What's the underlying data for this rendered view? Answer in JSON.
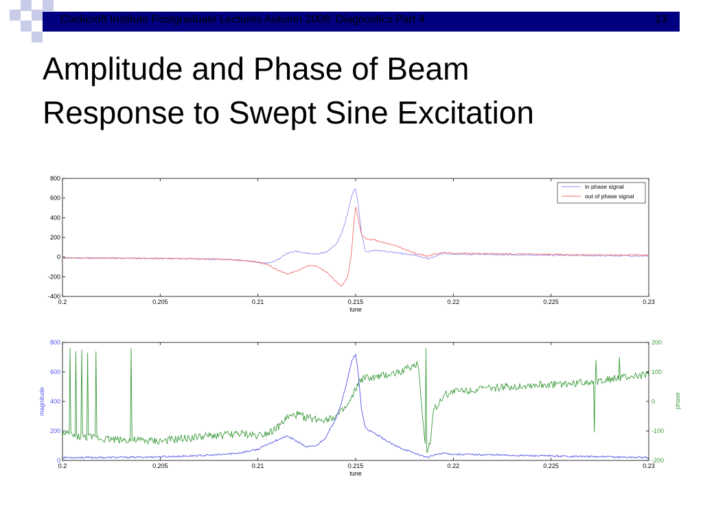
{
  "header": {
    "title": "Cockcroft Institute Postgraduate Lectures Autumn 2008: Diagnostics Part 4",
    "slide_number": "13"
  },
  "slide": {
    "title_line1": "Amplitude and Phase of Beam",
    "title_line2": "Response to Swept Sine Excitation"
  },
  "colors": {
    "header_bar": "#000080",
    "logo_square": "#c9cce8",
    "in_phase": "#8f8ff2",
    "out_of_phase": "#f26e6e",
    "magnitude": "#5050e8",
    "phase": "#3a9a3a"
  },
  "chart_data": [
    {
      "type": "line",
      "xlabel": "tune",
      "ylabel": "",
      "xlim": [
        0.2,
        0.23
      ],
      "ylim": [
        -400,
        800
      ],
      "x_ticks": [
        "0.2",
        "0.205",
        "0.21",
        "0.215",
        "0.22",
        "0.225",
        "0.23"
      ],
      "y_ticks": [
        "800",
        "600",
        "400",
        "200",
        "0",
        "-200",
        "-400"
      ],
      "grid": false,
      "legend": "top-right",
      "series": [
        {
          "name": "in phase signal",
          "color": "#8f8ff2",
          "x": [
            0.2,
            0.202,
            0.204,
            0.206,
            0.208,
            0.209,
            0.21,
            0.2105,
            0.211,
            0.2115,
            0.212,
            0.2125,
            0.213,
            0.2135,
            0.214,
            0.2143,
            0.2146,
            0.2148,
            0.2149,
            0.215,
            0.2151,
            0.2153,
            0.2155,
            0.216,
            0.217,
            0.218,
            0.2187,
            0.219,
            0.2195,
            0.22,
            0.222,
            0.224,
            0.226,
            0.228,
            0.23
          ],
          "y": [
            -10,
            -10,
            -12,
            -15,
            -22,
            -30,
            -50,
            -65,
            -30,
            40,
            60,
            40,
            30,
            50,
            130,
            250,
            450,
            620,
            680,
            690,
            580,
            250,
            50,
            70,
            45,
            20,
            -15,
            0,
            40,
            30,
            25,
            20,
            18,
            15,
            10
          ]
        },
        {
          "name": "out of phase signal",
          "color": "#f26e6e",
          "x": [
            0.2,
            0.202,
            0.204,
            0.206,
            0.208,
            0.209,
            0.21,
            0.2105,
            0.211,
            0.2115,
            0.212,
            0.2125,
            0.213,
            0.2135,
            0.214,
            0.2143,
            0.2146,
            0.2148,
            0.2149,
            0.215,
            0.2151,
            0.2153,
            0.2155,
            0.216,
            0.217,
            0.218,
            0.2187,
            0.219,
            0.2195,
            0.22,
            0.222,
            0.224,
            0.226,
            0.228,
            0.23
          ],
          "y": [
            -10,
            -10,
            -12,
            -15,
            -20,
            -30,
            -50,
            -80,
            -130,
            -170,
            -140,
            -90,
            -90,
            -150,
            -250,
            -300,
            -200,
            60,
            330,
            510,
            420,
            230,
            190,
            170,
            120,
            40,
            10,
            30,
            45,
            40,
            35,
            30,
            25,
            22,
            20
          ]
        }
      ]
    },
    {
      "type": "line",
      "xlabel": "tune",
      "ylabel": "magnitude",
      "ylabel_right": "phase",
      "xlim": [
        0.2,
        0.23
      ],
      "ylim": [
        0,
        800
      ],
      "ylim_right": [
        -200,
        200
      ],
      "x_ticks": [
        "0.2",
        "0.205",
        "0.21",
        "0.215",
        "0.22",
        "0.225",
        "0.23"
      ],
      "y_ticks": [
        "800",
        "600",
        "400",
        "200",
        "0"
      ],
      "y_ticks_right": [
        "200",
        "100",
        "0",
        "-100",
        "-200"
      ],
      "grid": false,
      "series": [
        {
          "color": "#5050e8",
          "axis": "left",
          "x": [
            0.2,
            0.202,
            0.204,
            0.206,
            0.208,
            0.209,
            0.21,
            0.2105,
            0.211,
            0.2115,
            0.212,
            0.2125,
            0.213,
            0.2135,
            0.214,
            0.2143,
            0.2146,
            0.2148,
            0.2149,
            0.215,
            0.2151,
            0.2153,
            0.2155,
            0.216,
            0.217,
            0.218,
            0.2187,
            0.219,
            0.2195,
            0.22,
            0.222,
            0.224,
            0.226,
            0.228,
            0.23
          ],
          "y": [
            20,
            20,
            22,
            28,
            38,
            50,
            75,
            110,
            140,
            165,
            130,
            90,
            100,
            160,
            290,
            400,
            560,
            670,
            700,
            715,
            630,
            350,
            220,
            180,
            100,
            50,
            20,
            35,
            50,
            42,
            38,
            32,
            28,
            24,
            20
          ]
        },
        {
          "color": "#3a9a3a",
          "axis": "right",
          "x": [
            0.2,
            0.201,
            0.203,
            0.205,
            0.207,
            0.209,
            0.21,
            0.2105,
            0.211,
            0.2115,
            0.212,
            0.2125,
            0.213,
            0.2135,
            0.214,
            0.2143,
            0.2146,
            0.2148,
            0.215,
            0.2152,
            0.2155,
            0.216,
            0.217,
            0.2178,
            0.2182,
            0.2186,
            0.2188,
            0.219,
            0.2195,
            0.22,
            0.222,
            0.224,
            0.226,
            0.228,
            0.23
          ],
          "y": [
            -110,
            -120,
            -130,
            -135,
            -120,
            -110,
            -115,
            -105,
            -90,
            -55,
            -45,
            -55,
            -60,
            -60,
            -50,
            -35,
            -15,
            10,
            40,
            70,
            80,
            80,
            95,
            115,
            130,
            -180,
            -140,
            -30,
            20,
            35,
            45,
            55,
            60,
            75,
            90
          ]
        }
      ]
    }
  ]
}
